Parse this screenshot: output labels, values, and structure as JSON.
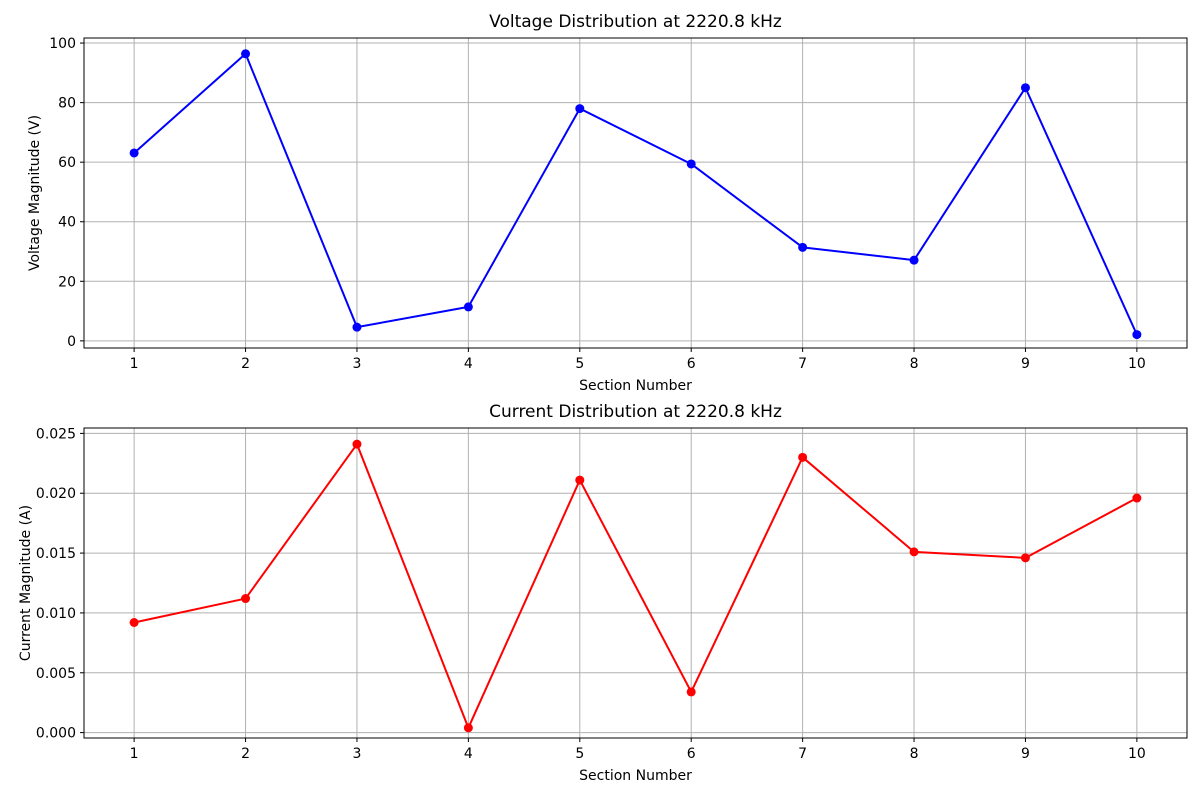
{
  "figure": {
    "background_color": "#ffffff",
    "grid_color": "#b0b0b0",
    "spine_color": "#000000",
    "text_color": "#000000"
  },
  "chart_data": [
    {
      "type": "line",
      "title": "Voltage Distribution at 2220.8 kHz",
      "xlabel": "Section Number",
      "ylabel": "Voltage Magnitude (V)",
      "line_color": "#0000ff",
      "marker": "circle",
      "grid": true,
      "legend": "none",
      "x": [
        1,
        2,
        3,
        4,
        5,
        6,
        7,
        8,
        9,
        10
      ],
      "y": [
        63.1,
        96.4,
        4.6,
        11.4,
        78.0,
        59.4,
        31.4,
        27.1,
        85.0,
        2.1
      ],
      "xlim": [
        0.55,
        10.45
      ],
      "ylim": [
        -2.4,
        101.7
      ],
      "xticks": [
        1,
        2,
        3,
        4,
        5,
        6,
        7,
        8,
        9,
        10
      ],
      "xtick_labels": [
        "1",
        "2",
        "3",
        "4",
        "5",
        "6",
        "7",
        "8",
        "9",
        "10"
      ],
      "yticks": [
        0,
        20,
        40,
        60,
        80,
        100
      ],
      "ytick_labels": [
        "0",
        "20",
        "40",
        "60",
        "80",
        "100"
      ]
    },
    {
      "type": "line",
      "title": "Current Distribution at 2220.8 kHz",
      "xlabel": "Section Number",
      "ylabel": "Current Magnitude (A)",
      "line_color": "#ff0000",
      "marker": "circle",
      "grid": true,
      "legend": "none",
      "x": [
        1,
        2,
        3,
        4,
        5,
        6,
        7,
        8,
        9,
        10
      ],
      "y": [
        0.0092,
        0.0112,
        0.0241,
        0.0004,
        0.0211,
        0.0034,
        0.023,
        0.0151,
        0.0146,
        0.0196
      ],
      "xlim": [
        0.55,
        10.45
      ],
      "ylim": [
        -0.00045,
        0.02545
      ],
      "xticks": [
        1,
        2,
        3,
        4,
        5,
        6,
        7,
        8,
        9,
        10
      ],
      "xtick_labels": [
        "1",
        "2",
        "3",
        "4",
        "5",
        "6",
        "7",
        "8",
        "9",
        "10"
      ],
      "yticks": [
        0,
        0.005,
        0.01,
        0.015,
        0.02,
        0.025
      ],
      "ytick_labels": [
        "0.000",
        "0.005",
        "0.010",
        "0.015",
        "0.020",
        "0.025"
      ]
    }
  ]
}
